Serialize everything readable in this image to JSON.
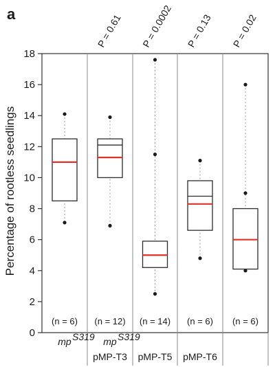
{
  "panel_label": "a",
  "chart_data": {
    "type": "box",
    "title": "",
    "xlabel": "",
    "ylabel": "Percentage of rootless seedlings",
    "ylim": [
      0,
      18
    ],
    "yticks": [
      0,
      2,
      4,
      6,
      8,
      10,
      12,
      14,
      16,
      18
    ],
    "grid": false,
    "groups": [
      {
        "line1": "mp",
        "line1_sup": "S319",
        "line2": "",
        "n_label": "(n = 6)",
        "p_label": "",
        "q1": 8.5,
        "median": 11.0,
        "q3": 12.5,
        "mean": null,
        "whisker_low": 7.1,
        "whisker_high": 14.1,
        "outliers": []
      },
      {
        "line1": "mp",
        "line1_sup": "S319",
        "line2": "pMP-T3",
        "n_label": "(n = 12)",
        "p_label": "P = 0.61",
        "q1": 10.0,
        "median": 11.3,
        "q3": 12.5,
        "mean": 12.1,
        "whisker_low": 6.9,
        "whisker_high": 13.9,
        "outliers": []
      },
      {
        "line1": "",
        "line1_sup": "",
        "line2": "pMP-T5",
        "n_label": "(n = 14)",
        "p_label": "P = 0.0002",
        "q1": 4.2,
        "median": 5.0,
        "q3": 5.9,
        "mean": null,
        "whisker_low": 2.5,
        "whisker_high": 17.6,
        "outliers": [
          11.5
        ]
      },
      {
        "line1": "",
        "line1_sup": "",
        "line2": "pMP-T6",
        "n_label": "(n = 6)",
        "p_label": "P = 0.13",
        "q1": 6.6,
        "median": 8.3,
        "q3": 9.8,
        "mean": 8.8,
        "whisker_low": 4.8,
        "whisker_high": 11.1,
        "outliers": []
      },
      {
        "line1": "",
        "line1_sup": "",
        "line2": "",
        "n_label": "(n = 6)",
        "p_label": "P = 0.02",
        "q1": 4.1,
        "median": 6.0,
        "q3": 8.0,
        "mean": null,
        "whisker_low": 4.0,
        "whisker_high": 16.0,
        "outliers": [
          9.0
        ]
      }
    ]
  }
}
